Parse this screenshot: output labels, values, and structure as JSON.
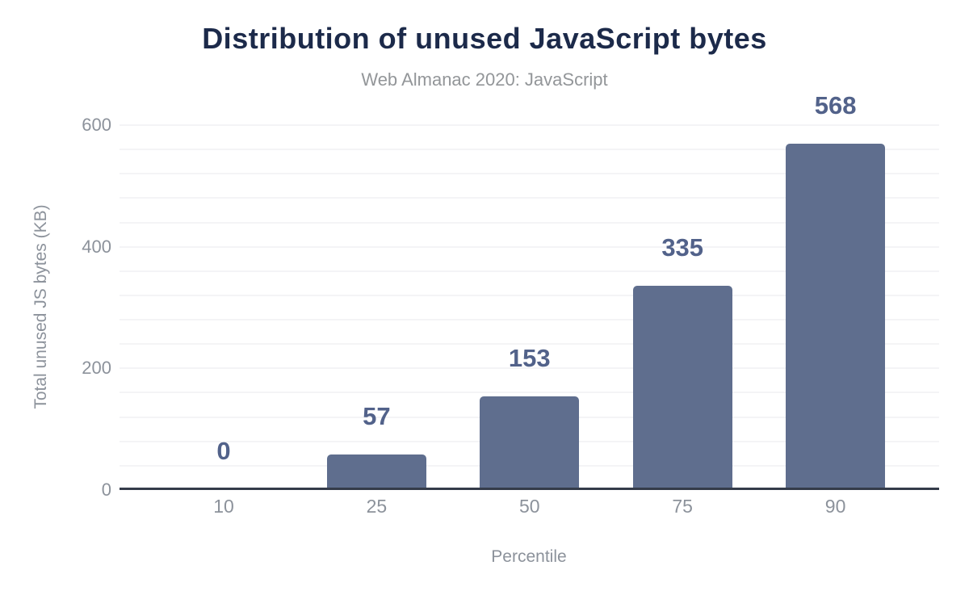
{
  "chart_data": {
    "type": "bar",
    "title": "Distribution of unused JavaScript bytes",
    "subtitle": "Web Almanac 2020: JavaScript",
    "xlabel": "Percentile",
    "ylabel": "Total unused JS bytes (KB)",
    "categories": [
      "10",
      "25",
      "50",
      "75",
      "90"
    ],
    "values": [
      0,
      57,
      153,
      335,
      568
    ],
    "value_labels": [
      "0",
      "57",
      "153",
      "335",
      "568"
    ],
    "ytick_labels": [
      "0",
      "200",
      "400",
      "600"
    ],
    "yticks": [
      0,
      200,
      400,
      600
    ],
    "ylim": [
      0,
      600
    ],
    "minor_gridline_step": 40,
    "grid": true,
    "legend": "none",
    "colors": {
      "background": "#ffffff",
      "bar": "#5f6e8e",
      "value_label": "#52628a",
      "title": "#1c2a4a",
      "subtitle": "#939699",
      "axis_text": "#8c929b",
      "axis_line": "#343b49",
      "gridline": "#f4f4f6"
    }
  }
}
